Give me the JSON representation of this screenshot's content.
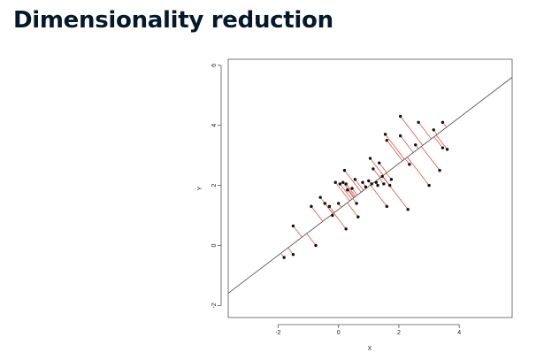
{
  "slide": {
    "title": "Dimensionality reduction"
  },
  "chart_data": {
    "type": "scatter",
    "title": "",
    "xlabel": "X",
    "ylabel": "Y",
    "xlim": [
      -3.65,
      5.75
    ],
    "ylim": [
      -2.4,
      6.2
    ],
    "x_ticks": [
      -2,
      0,
      2,
      4
    ],
    "y_ticks": [
      -2,
      0,
      2,
      4,
      6
    ],
    "grid": false,
    "legend": "none",
    "fit_line": {
      "slope": 0.765,
      "intercept": 1.2,
      "color": "#555555"
    },
    "projection_color": "#e8534f",
    "point_color": "#111111",
    "points": [
      {
        "x": -1.8,
        "y": -0.4
      },
      {
        "x": -1.5,
        "y": -0.3
      },
      {
        "x": -1.5,
        "y": 0.65
      },
      {
        "x": -0.75,
        "y": 0.0
      },
      {
        "x": -0.9,
        "y": 1.3
      },
      {
        "x": -0.6,
        "y": 1.6
      },
      {
        "x": -0.45,
        "y": 1.4
      },
      {
        "x": -0.3,
        "y": 1.3
      },
      {
        "x": -0.2,
        "y": 1.0
      },
      {
        "x": 0.0,
        "y": 1.4
      },
      {
        "x": -0.1,
        "y": 2.1
      },
      {
        "x": 0.05,
        "y": 2.05
      },
      {
        "x": 0.15,
        "y": 2.1
      },
      {
        "x": 0.25,
        "y": 2.05
      },
      {
        "x": 0.2,
        "y": 2.5
      },
      {
        "x": 0.3,
        "y": 1.85
      },
      {
        "x": 0.45,
        "y": 1.9
      },
      {
        "x": 0.55,
        "y": 2.2
      },
      {
        "x": 0.6,
        "y": 1.4
      },
      {
        "x": 0.65,
        "y": 0.95
      },
      {
        "x": 0.25,
        "y": 0.55
      },
      {
        "x": 0.8,
        "y": 2.1
      },
      {
        "x": 0.9,
        "y": 1.95
      },
      {
        "x": 1.0,
        "y": 2.15
      },
      {
        "x": 1.1,
        "y": 2.05
      },
      {
        "x": 1.05,
        "y": 2.9
      },
      {
        "x": 1.15,
        "y": 2.55
      },
      {
        "x": 1.25,
        "y": 2.1
      },
      {
        "x": 1.3,
        "y": 2.0
      },
      {
        "x": 1.35,
        "y": 2.75
      },
      {
        "x": 1.45,
        "y": 2.3
      },
      {
        "x": 1.5,
        "y": 2.05
      },
      {
        "x": 1.55,
        "y": 3.7
      },
      {
        "x": 1.6,
        "y": 3.5
      },
      {
        "x": 1.6,
        "y": 1.3
      },
      {
        "x": 1.7,
        "y": 2.0
      },
      {
        "x": 1.75,
        "y": 2.2
      },
      {
        "x": 2.05,
        "y": 4.3
      },
      {
        "x": 2.05,
        "y": 3.65
      },
      {
        "x": 2.3,
        "y": 1.2
      },
      {
        "x": 2.35,
        "y": 2.7
      },
      {
        "x": 2.55,
        "y": 3.35
      },
      {
        "x": 2.65,
        "y": 4.1
      },
      {
        "x": 3.0,
        "y": 2.0
      },
      {
        "x": 3.15,
        "y": 3.85
      },
      {
        "x": 3.35,
        "y": 2.5
      },
      {
        "x": 3.45,
        "y": 4.1
      },
      {
        "x": 3.45,
        "y": 3.25
      },
      {
        "x": 3.6,
        "y": 3.2
      }
    ]
  }
}
